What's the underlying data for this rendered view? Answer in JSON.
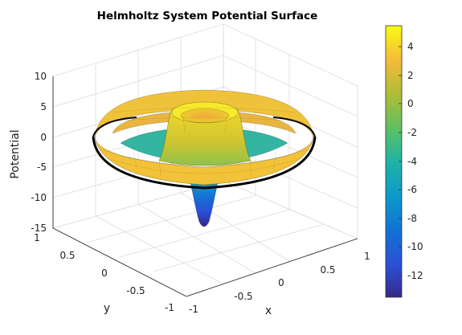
{
  "chart_data": {
    "type": "surface",
    "title": "Helmholtz System Potential Surface",
    "xlabel": "x",
    "ylabel": "y",
    "zlabel": "Potential",
    "xlim": [
      -1,
      1
    ],
    "ylim": [
      -1,
      1
    ],
    "zlim": [
      -15,
      10
    ],
    "x_ticks": [
      "-1",
      "-0.5",
      "0",
      "0.5",
      "1"
    ],
    "y_ticks": [
      "-1",
      "-0.5",
      "0",
      "0.5",
      "1"
    ],
    "z_ticks": [
      "-15",
      "-10",
      "-5",
      "0",
      "5",
      "10"
    ],
    "colorbar": {
      "range": [
        -13.5,
        5.5
      ],
      "ticks": [
        "4",
        "2",
        "0",
        "-2",
        "-4",
        "-6",
        "-8",
        "-10",
        "-12"
      ],
      "colormap": "parula"
    },
    "surface": {
      "description_of_profile_by_radius": [
        {
          "r": 0.0,
          "z": 2.0
        },
        {
          "r": 0.15,
          "z": 4.5
        },
        {
          "r": 0.3,
          "z": 0.0
        },
        {
          "r": 0.45,
          "z": -4.0
        },
        {
          "r": 0.6,
          "z": -3.0
        },
        {
          "r": 0.8,
          "z": 2.0
        },
        {
          "r": 0.9,
          "z": 4.0
        },
        {
          "r": 1.0,
          "z": 0.0
        }
      ],
      "well_minimum": -13.5,
      "grid": true,
      "edge_color": "#000000"
    }
  }
}
